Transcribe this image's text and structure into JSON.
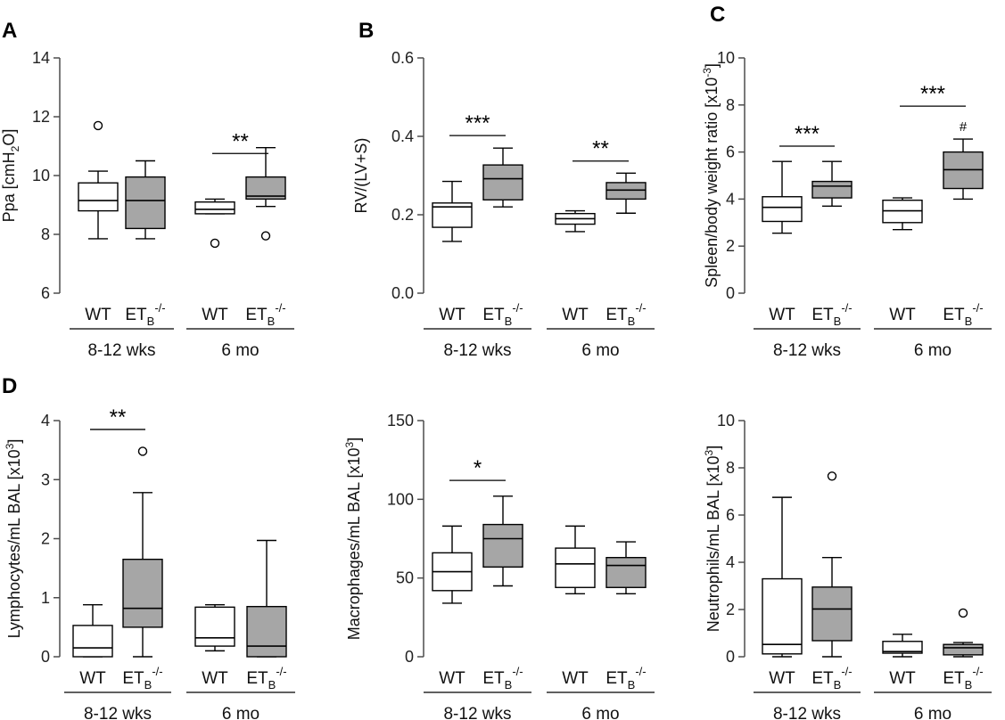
{
  "figure": {
    "panels": [
      {
        "id": "A",
        "letter": "A",
        "show_letter": true
      },
      {
        "id": "B",
        "letter": "B",
        "show_letter": true
      },
      {
        "id": "C",
        "letter": "C",
        "show_letter": true
      },
      {
        "id": "D1",
        "letter": "D",
        "show_letter": true
      },
      {
        "id": "D2",
        "letter": "",
        "show_letter": false
      },
      {
        "id": "D3",
        "letter": "",
        "show_letter": false
      }
    ]
  },
  "colors": {
    "wt_fill": "#ffffff",
    "etb_fill": "#a6a6a6",
    "stroke": "#000000",
    "axis": "#4d4d4d"
  },
  "chart_data": [
    {
      "id": "A",
      "type": "box",
      "ylabel": "Ppa [cmH",
      "ylabel_sub": "2",
      "ylabel_suffix": "O]",
      "ylim": [
        6,
        14
      ],
      "yticks": [
        6,
        8,
        10,
        12,
        14
      ],
      "ytick_labels": [
        "6",
        "8",
        "10",
        "12",
        "14"
      ],
      "xtick_labels": [
        {
          "main": "WT"
        },
        {
          "main": "ET",
          "sub": "B",
          "sup": "-/-"
        },
        {
          "main": "WT"
        },
        {
          "main": "ET",
          "sub": "B",
          "sup": "-/-"
        }
      ],
      "groups": [
        "8-12 wks",
        "6 mo"
      ],
      "boxes": [
        {
          "group": "8-12 wks",
          "genotype": "WT",
          "whisker_low": 7.85,
          "q1": 8.8,
          "median": 9.15,
          "q3": 9.75,
          "whisker_high": 10.15,
          "outliers": [
            11.7
          ]
        },
        {
          "group": "8-12 wks",
          "genotype": "ETB-/-",
          "whisker_low": 7.85,
          "q1": 8.2,
          "median": 9.15,
          "q3": 9.95,
          "whisker_high": 10.5,
          "outliers": []
        },
        {
          "group": "6 mo",
          "genotype": "WT",
          "whisker_low": 8.7,
          "q1": 8.7,
          "median": 8.85,
          "q3": 9.1,
          "whisker_high": 9.2,
          "outliers": [
            7.7
          ]
        },
        {
          "group": "6 mo",
          "genotype": "ETB-/-",
          "whisker_low": 8.95,
          "q1": 9.2,
          "median": 9.3,
          "q3": 9.95,
          "whisker_high": 10.95,
          "outliers": [
            7.95
          ]
        }
      ],
      "annotations": [
        {
          "text": "**",
          "from_box": 2,
          "to_box": 3,
          "y": 10.75,
          "marker": false
        }
      ]
    },
    {
      "id": "B",
      "type": "box",
      "ylabel": "RV/(LV+S)",
      "ylabel_sub": "",
      "ylabel_suffix": "",
      "ylim": [
        0.0,
        0.6
      ],
      "yticks": [
        0.0,
        0.2,
        0.4,
        0.6
      ],
      "ytick_labels": [
        "0.0",
        "0.2",
        "0.4",
        "0.6"
      ],
      "xtick_labels": [
        {
          "main": "WT"
        },
        {
          "main": "ET",
          "sub": "B",
          "sup": "-/-"
        },
        {
          "main": "WT"
        },
        {
          "main": "ET",
          "sub": "B",
          "sup": "-/-"
        }
      ],
      "groups": [
        "8-12 wks",
        "6 mo"
      ],
      "boxes": [
        {
          "group": "8-12 wks",
          "genotype": "WT",
          "whisker_low": 0.132,
          "q1": 0.168,
          "median": 0.22,
          "q3": 0.23,
          "whisker_high": 0.285,
          "outliers": []
        },
        {
          "group": "8-12 wks",
          "genotype": "ETB-/-",
          "whisker_low": 0.22,
          "q1": 0.238,
          "median": 0.292,
          "q3": 0.327,
          "whisker_high": 0.37,
          "outliers": []
        },
        {
          "group": "6 mo",
          "genotype": "WT",
          "whisker_low": 0.157,
          "q1": 0.176,
          "median": 0.19,
          "q3": 0.203,
          "whisker_high": 0.21,
          "outliers": []
        },
        {
          "group": "6 mo",
          "genotype": "ETB-/-",
          "whisker_low": 0.204,
          "q1": 0.24,
          "median": 0.263,
          "q3": 0.282,
          "whisker_high": 0.306,
          "outliers": []
        }
      ],
      "annotations": [
        {
          "text": "***",
          "from_box": 0,
          "to_box": 1,
          "y": 0.402,
          "marker": false
        },
        {
          "text": "**",
          "from_box": 2,
          "to_box": 3,
          "y": 0.337,
          "marker": false
        }
      ]
    },
    {
      "id": "C",
      "type": "box",
      "ylabel": "Spleen/body weight ratio [x10",
      "ylabel_sub": "",
      "ylabel_sup": "-3",
      "ylabel_suffix": "]",
      "ylim": [
        0,
        10
      ],
      "yticks": [
        0,
        2,
        4,
        6,
        8,
        10
      ],
      "ytick_labels": [
        "0",
        "2",
        "4",
        "6",
        "8",
        "10"
      ],
      "xtick_labels": [
        {
          "main": "WT"
        },
        {
          "main": "ET",
          "sub": "B",
          "sup": "-/-"
        },
        {
          "main": "WT"
        },
        {
          "main": "ET",
          "sub": "B",
          "sup": "-/-"
        }
      ],
      "groups": [
        "8-12 wks",
        "6 mo"
      ],
      "boxes": [
        {
          "group": "8-12 wks",
          "genotype": "WT",
          "whisker_low": 2.55,
          "q1": 3.05,
          "median": 3.65,
          "q3": 4.1,
          "whisker_high": 5.6,
          "outliers": []
        },
        {
          "group": "8-12 wks",
          "genotype": "ETB-/-",
          "whisker_low": 3.7,
          "q1": 4.05,
          "median": 4.55,
          "q3": 4.75,
          "whisker_high": 5.6,
          "outliers": []
        },
        {
          "group": "6 mo",
          "genotype": "WT",
          "whisker_low": 2.7,
          "q1": 3.0,
          "median": 3.5,
          "q3": 3.95,
          "whisker_high": 4.05,
          "outliers": []
        },
        {
          "group": "6 mo",
          "genotype": "ETB-/-",
          "whisker_low": 4.0,
          "q1": 4.45,
          "median": 5.25,
          "q3": 6.0,
          "whisker_high": 6.55,
          "outliers": []
        }
      ],
      "annotations": [
        {
          "text": "***",
          "from_box": 0,
          "to_box": 1,
          "y": 6.25,
          "marker": false
        },
        {
          "text": "***",
          "from_box": 2,
          "to_box": 3,
          "y": 7.95,
          "marker": false
        },
        {
          "text": "#",
          "box": 3,
          "y": 6.9,
          "marker": true
        }
      ]
    },
    {
      "id": "D1",
      "type": "box",
      "ylabel": "Lymphocytes/mL BAL [x10",
      "ylabel_sub": "",
      "ylabel_sup": "3",
      "ylabel_suffix": "]",
      "ylim": [
        0,
        4
      ],
      "yticks": [
        0,
        1,
        2,
        3,
        4
      ],
      "ytick_labels": [
        "0",
        "1",
        "2",
        "3",
        "4"
      ],
      "xtick_labels": [
        {
          "main": "WT"
        },
        {
          "main": "ET",
          "sub": "B",
          "sup": "-/-"
        },
        {
          "main": "WT"
        },
        {
          "main": "ET",
          "sub": "B",
          "sup": "-/-"
        }
      ],
      "groups": [
        "8-12 wks",
        "6 mo"
      ],
      "boxes": [
        {
          "group": "8-12 wks",
          "genotype": "WT",
          "whisker_low": 0.0,
          "q1": 0.0,
          "median": 0.15,
          "q3": 0.53,
          "whisker_high": 0.88,
          "outliers": []
        },
        {
          "group": "8-12 wks",
          "genotype": "ETB-/-",
          "whisker_low": 0.0,
          "q1": 0.5,
          "median": 0.82,
          "q3": 1.65,
          "whisker_high": 2.78,
          "outliers": [
            3.48
          ]
        },
        {
          "group": "6 mo",
          "genotype": "WT",
          "whisker_low": 0.1,
          "q1": 0.18,
          "median": 0.32,
          "q3": 0.84,
          "whisker_high": 0.88,
          "outliers": []
        },
        {
          "group": "6 mo",
          "genotype": "ETB-/-",
          "whisker_low": 0.0,
          "q1": 0.0,
          "median": 0.18,
          "q3": 0.85,
          "whisker_high": 1.97,
          "outliers": []
        }
      ],
      "annotations": [
        {
          "text": "**",
          "from_box": 0,
          "to_box": 1,
          "y": 3.85,
          "marker": false
        }
      ]
    },
    {
      "id": "D2",
      "type": "box",
      "ylabel": "Macrophages/mL BAL [x10",
      "ylabel_sub": "",
      "ylabel_sup": "3",
      "ylabel_suffix": "]",
      "ylim": [
        0,
        150
      ],
      "yticks": [
        0,
        50,
        100,
        150
      ],
      "ytick_labels": [
        "0",
        "50",
        "100",
        "150"
      ],
      "xtick_labels": [
        {
          "main": "WT"
        },
        {
          "main": "ET",
          "sub": "B",
          "sup": "-/-"
        },
        {
          "main": "WT"
        },
        {
          "main": "ET",
          "sub": "B",
          "sup": "-/-"
        }
      ],
      "groups": [
        "8-12 wks",
        "6 mo"
      ],
      "boxes": [
        {
          "group": "8-12 wks",
          "genotype": "WT",
          "whisker_low": 34,
          "q1": 42,
          "median": 54,
          "q3": 66,
          "whisker_high": 83,
          "outliers": []
        },
        {
          "group": "8-12 wks",
          "genotype": "ETB-/-",
          "whisker_low": 45,
          "q1": 57,
          "median": 75,
          "q3": 84,
          "whisker_high": 102,
          "outliers": []
        },
        {
          "group": "6 mo",
          "genotype": "WT",
          "whisker_low": 40,
          "q1": 44,
          "median": 59,
          "q3": 69,
          "whisker_high": 83,
          "outliers": []
        },
        {
          "group": "6 mo",
          "genotype": "ETB-/-",
          "whisker_low": 40,
          "q1": 44,
          "median": 58,
          "q3": 63,
          "whisker_high": 73,
          "outliers": []
        }
      ],
      "annotations": [
        {
          "text": "*",
          "from_box": 0,
          "to_box": 1,
          "y": 112,
          "marker": false
        }
      ]
    },
    {
      "id": "D3",
      "type": "box",
      "ylabel": "Neutrophils/mL BAL [x10",
      "ylabel_sub": "",
      "ylabel_sup": "3",
      "ylabel_suffix": "]",
      "ylim": [
        0,
        10
      ],
      "yticks": [
        0,
        2,
        4,
        6,
        8,
        10
      ],
      "ytick_labels": [
        "0",
        "2",
        "4",
        "6",
        "8",
        "10"
      ],
      "xtick_labels": [
        {
          "main": "WT"
        },
        {
          "main": "ET",
          "sub": "B",
          "sup": "-/-"
        },
        {
          "main": "WT"
        },
        {
          "main": "ET",
          "sub": "B",
          "sup": "-/-"
        }
      ],
      "groups": [
        "8-12 wks",
        "6 mo"
      ],
      "boxes": [
        {
          "group": "8-12 wks",
          "genotype": "WT",
          "whisker_low": 0.0,
          "q1": 0.12,
          "median": 0.52,
          "q3": 3.3,
          "whisker_high": 6.75,
          "outliers": []
        },
        {
          "group": "8-12 wks",
          "genotype": "ETB-/-",
          "whisker_low": 0.0,
          "q1": 0.68,
          "median": 2.02,
          "q3": 2.95,
          "whisker_high": 4.2,
          "outliers": [
            7.65
          ]
        },
        {
          "group": "6 mo",
          "genotype": "WT",
          "whisker_low": 0.0,
          "q1": 0.15,
          "median": 0.22,
          "q3": 0.65,
          "whisker_high": 0.95,
          "outliers": []
        },
        {
          "group": "6 mo",
          "genotype": "ETB-/-",
          "whisker_low": 0.0,
          "q1": 0.08,
          "median": 0.38,
          "q3": 0.52,
          "whisker_high": 0.6,
          "outliers": [
            1.85
          ]
        }
      ],
      "annotations": []
    }
  ]
}
